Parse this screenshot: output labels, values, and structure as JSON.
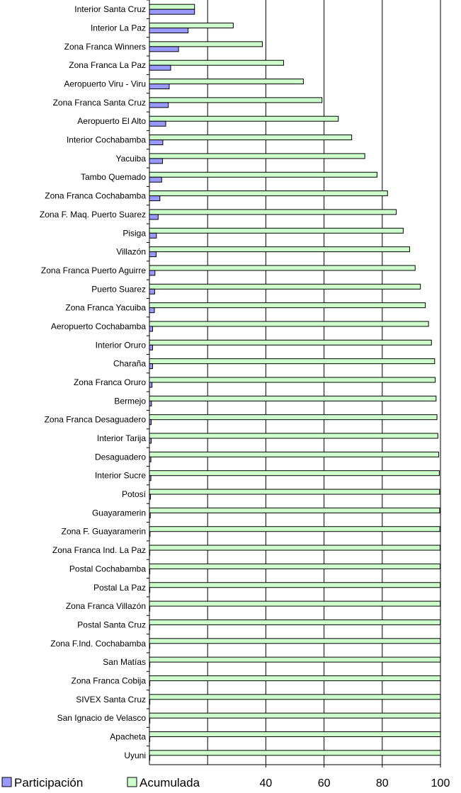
{
  "chart_data": {
    "type": "bar",
    "orientation": "horizontal",
    "grid": true,
    "legend_position": "bottom",
    "xlim": [
      0,
      100
    ],
    "x_ticks": [
      "40",
      "60",
      "80",
      "100"
    ],
    "categories": [
      "Interior Santa Cruz",
      "Interior La Paz",
      "Zona Franca Winners",
      "Zona Franca La Paz",
      "Aeropuerto Viru - Viru",
      "Zona Franca Santa Cruz",
      "Aeropuerto El Alto",
      "Interior Cochabamba",
      "Yacuiba",
      "Tambo Quemado",
      "Zona Franca Cochabamba",
      "Zona F. Maq. Puerto Suarez",
      "Pisiga",
      "Villazón",
      "Zona Franca Puerto Aguirre",
      "Puerto Suarez",
      "Zona Franca Yacuiba",
      "Aeropuerto Cochabamba",
      "Interior Oruro",
      "Charaña",
      "Zona Franca Oruro",
      "Bermejo",
      "Zona Franca Desaguadero",
      "Interior Tarija",
      "Desaguadero",
      "Interior Sucre",
      "Potosí",
      "Guayaramerin",
      "Zona F. Guayaramerin",
      "Zona Franca Ind. La Paz",
      "Postal Cochabamba",
      "Postal La Paz",
      "Zona Franca Villazón",
      "Postal Santa Cruz",
      "Zona F.Ind. Cochabamba",
      "San Matías",
      "Zona Franca Cobija",
      "SIVEX Santa Cruz",
      "San Ignacio de Velasco",
      "Apacheta",
      "Uyuni"
    ],
    "series": [
      {
        "name": "Participación",
        "color": "#9999ff",
        "values": [
          15.5,
          13.3,
          10.0,
          7.3,
          6.8,
          6.5,
          5.6,
          4.6,
          4.5,
          4.2,
          3.6,
          3.0,
          2.4,
          2.3,
          1.9,
          1.8,
          1.7,
          1.1,
          1.1,
          1.1,
          0.9,
          0.7,
          0.6,
          0.6,
          0.5,
          0.5,
          0.35,
          0.3,
          0.2,
          0.15,
          0.12,
          0.1,
          0.1,
          0.08,
          0.06,
          0.05,
          0.05,
          0.04,
          0.03,
          0.02,
          0.02
        ]
      },
      {
        "name": "Acumulada",
        "color": "#ccffcc",
        "values": [
          15.5,
          28.8,
          38.8,
          46.1,
          52.9,
          59.3,
          64.9,
          69.5,
          74.0,
          78.2,
          81.8,
          84.8,
          87.2,
          89.4,
          91.3,
          93.1,
          94.8,
          95.9,
          96.9,
          98.0,
          98.2,
          98.5,
          98.8,
          99.1,
          99.4,
          99.6,
          99.7,
          99.75,
          99.8,
          99.85,
          99.88,
          99.9,
          99.92,
          99.94,
          99.95,
          99.96,
          99.97,
          99.98,
          99.99,
          99.995,
          100
        ]
      }
    ]
  }
}
